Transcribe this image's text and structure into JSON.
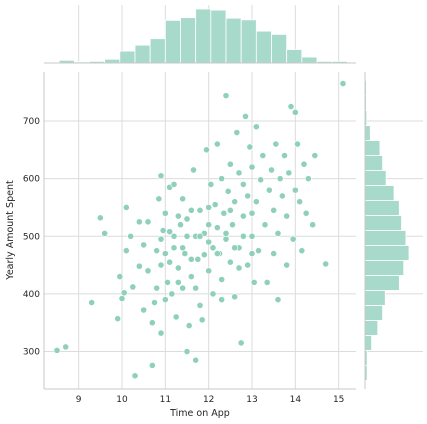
{
  "figure": {
    "background": "#ffffff"
  },
  "chart_data": {
    "type": "scatter",
    "subtype": "jointplot",
    "title": "",
    "xlabel": "Time on App",
    "ylabel": "Yearly Amount Spent",
    "xlim": [
      8.2,
      15.4
    ],
    "ylim": [
      235,
      785
    ],
    "xticks": [
      9,
      10,
      11,
      12,
      13,
      14,
      15
    ],
    "yticks": [
      300,
      400,
      500,
      600,
      700
    ],
    "grid": true,
    "marker_color": "#8fd0bd",
    "hist_color": "#a8dacb",
    "points": [
      [
        8.5,
        302
      ],
      [
        8.7,
        308
      ],
      [
        9.3,
        385
      ],
      [
        9.5,
        532
      ],
      [
        9.6,
        505
      ],
      [
        9.9,
        357
      ],
      [
        9.95,
        430
      ],
      [
        10.0,
        392
      ],
      [
        10.05,
        402
      ],
      [
        10.1,
        550
      ],
      [
        10.1,
        475
      ],
      [
        10.2,
        500
      ],
      [
        10.25,
        412
      ],
      [
        10.3,
        258
      ],
      [
        10.4,
        525
      ],
      [
        10.4,
        448
      ],
      [
        10.5,
        372
      ],
      [
        10.5,
        485
      ],
      [
        10.6,
        440
      ],
      [
        10.6,
        525
      ],
      [
        10.7,
        276
      ],
      [
        10.7,
        350
      ],
      [
        10.75,
        385
      ],
      [
        10.8,
        410
      ],
      [
        10.8,
        475
      ],
      [
        10.85,
        565
      ],
      [
        10.9,
        332
      ],
      [
        10.9,
        450
      ],
      [
        10.9,
        605
      ],
      [
        10.95,
        510
      ],
      [
        11.0,
        390
      ],
      [
        11.0,
        540
      ],
      [
        11.05,
        420
      ],
      [
        11.1,
        585
      ],
      [
        11.1,
        455
      ],
      [
        11.1,
        508
      ],
      [
        11.15,
        400
      ],
      [
        11.2,
        480
      ],
      [
        11.2,
        590
      ],
      [
        11.25,
        360
      ],
      [
        11.3,
        445
      ],
      [
        11.3,
        535
      ],
      [
        11.35,
        520
      ],
      [
        11.4,
        410
      ],
      [
        11.4,
        565
      ],
      [
        11.45,
        470
      ],
      [
        11.5,
        300
      ],
      [
        11.5,
        500
      ],
      [
        11.55,
        345
      ],
      [
        11.6,
        545
      ],
      [
        11.6,
        430
      ],
      [
        11.65,
        615
      ],
      [
        11.7,
        285
      ],
      [
        11.7,
        500
      ],
      [
        11.75,
        460
      ],
      [
        11.8,
        380
      ],
      [
        11.8,
        545
      ],
      [
        11.85,
        355
      ],
      [
        11.9,
        505
      ],
      [
        11.9,
        468
      ],
      [
        11.95,
        650
      ],
      [
        12.0,
        440
      ],
      [
        12.0,
        520
      ],
      [
        12.05,
        590
      ],
      [
        12.1,
        400
      ],
      [
        12.1,
        480
      ],
      [
        12.15,
        555
      ],
      [
        12.2,
        515
      ],
      [
        12.2,
        660
      ],
      [
        12.25,
        470
      ],
      [
        12.3,
        600
      ],
      [
        12.3,
        425
      ],
      [
        12.35,
        540
      ],
      [
        12.4,
        744
      ],
      [
        12.4,
        495
      ],
      [
        12.45,
        578
      ],
      [
        12.5,
        455
      ],
      [
        12.5,
        625
      ],
      [
        12.55,
        520
      ],
      [
        12.6,
        395
      ],
      [
        12.6,
        560
      ],
      [
        12.65,
        680
      ],
      [
        12.7,
        480
      ],
      [
        12.7,
        610
      ],
      [
        12.75,
        315
      ],
      [
        12.8,
        535
      ],
      [
        12.8,
        590
      ],
      [
        12.85,
        708
      ],
      [
        12.9,
        450
      ],
      [
        12.9,
        570
      ],
      [
        12.95,
        655
      ],
      [
        13.0,
        500
      ],
      [
        13.0,
        620
      ],
      [
        13.05,
        420
      ],
      [
        13.1,
        560
      ],
      [
        13.1,
        690
      ],
      [
        13.15,
        475
      ],
      [
        13.2,
        598
      ],
      [
        13.25,
        640
      ],
      [
        13.3,
        520
      ],
      [
        13.35,
        420
      ],
      [
        13.4,
        580
      ],
      [
        13.45,
        615
      ],
      [
        13.5,
        470
      ],
      [
        13.5,
        545
      ],
      [
        13.55,
        660
      ],
      [
        13.6,
        505
      ],
      [
        13.6,
        390
      ],
      [
        13.65,
        600
      ],
      [
        13.7,
        570
      ],
      [
        13.75,
        640
      ],
      [
        13.8,
        450
      ],
      [
        13.8,
        535
      ],
      [
        13.85,
        610
      ],
      [
        13.9,
        725
      ],
      [
        13.95,
        495
      ],
      [
        14.0,
        715
      ],
      [
        14.0,
        580
      ],
      [
        14.05,
        660
      ],
      [
        14.1,
        560
      ],
      [
        14.15,
        475
      ],
      [
        14.2,
        625
      ],
      [
        14.25,
        540
      ],
      [
        14.3,
        600
      ],
      [
        14.4,
        520
      ],
      [
        14.45,
        640
      ],
      [
        14.7,
        452
      ],
      [
        15.1,
        765
      ],
      [
        11.0,
        470
      ],
      [
        11.2,
        500
      ],
      [
        11.4,
        480
      ],
      [
        11.6,
        460
      ],
      [
        11.8,
        500
      ],
      [
        12.0,
        490
      ],
      [
        12.2,
        470
      ],
      [
        12.4,
        505
      ],
      [
        12.6,
        480
      ],
      [
        12.8,
        500
      ],
      [
        13.0,
        470
      ],
      [
        11.5,
        530
      ],
      [
        12.0,
        550
      ],
      [
        12.5,
        545
      ],
      [
        13.0,
        540
      ],
      [
        11.3,
        420
      ],
      [
        11.7,
        410
      ],
      [
        12.3,
        390
      ],
      [
        12.7,
        445
      ],
      [
        10.9,
        495
      ]
    ],
    "top_hist": {
      "bins": [
        8.55,
        8.9,
        9.25,
        9.6,
        9.95,
        10.3,
        10.65,
        11.0,
        11.35,
        11.7,
        12.05,
        12.4,
        12.75,
        13.1,
        13.45,
        13.8,
        14.15,
        14.5,
        14.85,
        15.2
      ],
      "counts": [
        0.05,
        0.02,
        0.03,
        0.07,
        0.22,
        0.33,
        0.45,
        0.79,
        0.84,
        1.0,
        0.98,
        0.83,
        0.8,
        0.59,
        0.53,
        0.25,
        0.11,
        0.03,
        0.03
      ]
    },
    "right_hist": {
      "bins": [
        250,
        276,
        302,
        328,
        354,
        380,
        406,
        432,
        458,
        484,
        510,
        536,
        562,
        588,
        614,
        640,
        666,
        692,
        718,
        744,
        770
      ],
      "counts": [
        0.05,
        0.05,
        0.15,
        0.29,
        0.4,
        0.46,
        0.78,
        0.88,
        1.0,
        0.93,
        0.83,
        0.78,
        0.66,
        0.48,
        0.4,
        0.34,
        0.12,
        0.04,
        0.03,
        0.03
      ]
    }
  }
}
